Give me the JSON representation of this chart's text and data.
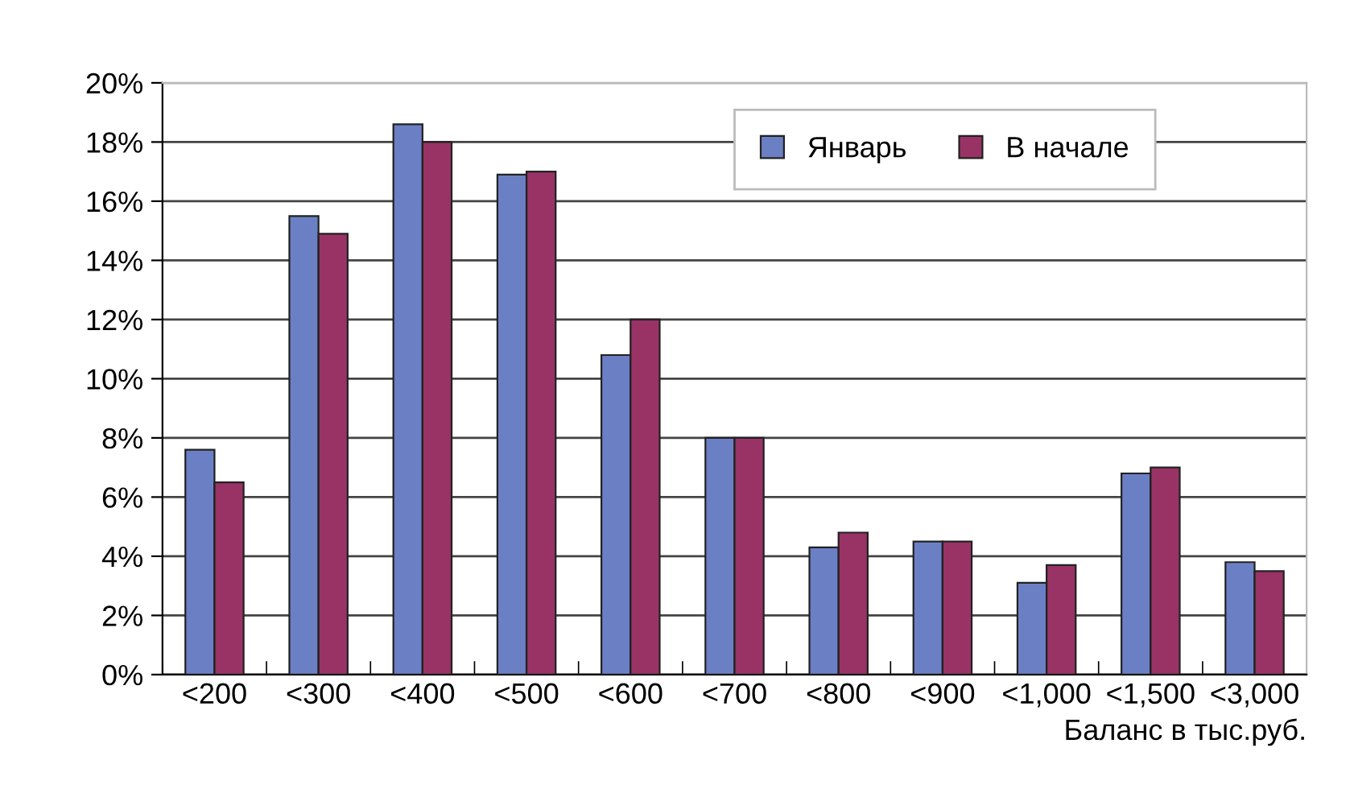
{
  "chart_data": {
    "type": "bar",
    "xlabel": "Баланс в тыс.руб.",
    "categories": [
      "<200",
      "<300",
      "<400",
      "<500",
      "<600",
      "<700",
      "<800",
      "<900",
      "<1,000",
      "<1,500",
      "<3,000"
    ],
    "series": [
      {
        "name": "Январь",
        "color": "#6b80c4",
        "values": [
          7.6,
          15.5,
          18.6,
          16.9,
          10.8,
          8.0,
          4.3,
          4.5,
          3.1,
          6.8,
          3.8
        ]
      },
      {
        "name": "В начале",
        "color": "#993366",
        "values": [
          6.5,
          14.9,
          18.0,
          17.0,
          12.0,
          8.0,
          4.8,
          4.5,
          3.7,
          7.0,
          3.5
        ]
      }
    ],
    "ylim": [
      0,
      20
    ],
    "yticks": [
      {
        "value": 0,
        "label": "0%"
      },
      {
        "value": 2,
        "label": "2%"
      },
      {
        "value": 4,
        "label": "4%"
      },
      {
        "value": 6,
        "label": "6%"
      },
      {
        "value": 8,
        "label": "8%"
      },
      {
        "value": 10,
        "label": "10%"
      },
      {
        "value": 12,
        "label": "12%"
      },
      {
        "value": 14,
        "label": "14%"
      },
      {
        "value": 16,
        "label": "16%"
      },
      {
        "value": 18,
        "label": "18%"
      },
      {
        "value": 20,
        "label": "20%"
      }
    ],
    "grid": "y",
    "legend": "top right"
  }
}
